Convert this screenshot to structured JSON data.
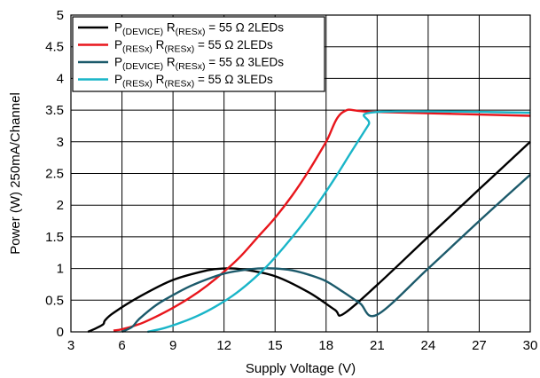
{
  "chart_data": {
    "type": "line",
    "title": "",
    "xlabel": "Supply Voltage (V)",
    "ylabel": "Power (W) 250mA/Channel",
    "xlim": [
      3,
      30
    ],
    "ylim": [
      0,
      5
    ],
    "x_ticks": [
      "3",
      "6",
      "9",
      "12",
      "15",
      "18",
      "21",
      "24",
      "27",
      "30"
    ],
    "y_ticks": [
      "0",
      "0.5",
      "1",
      "1.5",
      "2",
      "2.5",
      "3",
      "3.5",
      "4",
      "4.5",
      "5"
    ],
    "grid": true,
    "legend_position": "top-left",
    "series": [
      {
        "name": "P(DEVICE) R(RESx) = 55 Ω 2LEDs",
        "legend": {
          "main": "P",
          "sub1": "(DEVICE)",
          "mid": " R",
          "sub2": "(RESx)",
          "rest": " = 55 Ω 2LEDs"
        },
        "color": "#000000",
        "points": [
          [
            4,
            0.0
          ],
          [
            4.5,
            0.06
          ],
          [
            4.9,
            0.12
          ],
          [
            5.0,
            0.18
          ],
          [
            5.5,
            0.3
          ],
          [
            7,
            0.55
          ],
          [
            9,
            0.82
          ],
          [
            11,
            0.97
          ],
          [
            12,
            1.0
          ],
          [
            13,
            0.99
          ],
          [
            15,
            0.88
          ],
          [
            17,
            0.62
          ],
          [
            18.5,
            0.35
          ],
          [
            19,
            0.28
          ],
          [
            21,
            0.74
          ],
          [
            24,
            1.5
          ],
          [
            27,
            2.25
          ],
          [
            30,
            3.0
          ]
        ]
      },
      {
        "name": "P(RESx) R(RESx) = 55 Ω 2LEDs",
        "legend": {
          "main": "P",
          "sub1": "(RESx)",
          "mid": " R",
          "sub2": "(RESx)",
          "rest": " = 55 Ω 2LEDs"
        },
        "color": "#e8161c",
        "points": [
          [
            5.5,
            0.02
          ],
          [
            6,
            0.04
          ],
          [
            7,
            0.12
          ],
          [
            8,
            0.24
          ],
          [
            9,
            0.38
          ],
          [
            10,
            0.54
          ],
          [
            11,
            0.73
          ],
          [
            12,
            0.95
          ],
          [
            13,
            1.2
          ],
          [
            14,
            1.5
          ],
          [
            15,
            1.8
          ],
          [
            16,
            2.15
          ],
          [
            17,
            2.55
          ],
          [
            18,
            3.0
          ],
          [
            19,
            3.47
          ],
          [
            21,
            3.47
          ],
          [
            30,
            3.41
          ]
        ]
      },
      {
        "name": "P(DEVICE) R(RESx) = 55 Ω 3LEDs",
        "legend": {
          "main": "P",
          "sub1": "(DEVICE)",
          "mid": " R",
          "sub2": "(RESx)",
          "rest": " = 55 Ω 3LEDs"
        },
        "color": "#1c5a6b",
        "points": [
          [
            6,
            0.0
          ],
          [
            6.6,
            0.08
          ],
          [
            7,
            0.2
          ],
          [
            8,
            0.42
          ],
          [
            9,
            0.58
          ],
          [
            10,
            0.72
          ],
          [
            11,
            0.83
          ],
          [
            12,
            0.92
          ],
          [
            13,
            0.97
          ],
          [
            14,
            1.0
          ],
          [
            15,
            1.0
          ],
          [
            16,
            0.97
          ],
          [
            17,
            0.9
          ],
          [
            18,
            0.8
          ],
          [
            19,
            0.63
          ],
          [
            20,
            0.45
          ],
          [
            21,
            0.27
          ],
          [
            24,
            1.0
          ],
          [
            27,
            1.75
          ],
          [
            30,
            2.48
          ]
        ]
      },
      {
        "name": "P(RESx) R(RESx) = 55 Ω 3LEDs",
        "legend": {
          "main": "P",
          "sub1": "(RESx)",
          "mid": " R",
          "sub2": "(RESx)",
          "rest": " = 55 Ω 3LEDs"
        },
        "color": "#1ab5c8",
        "points": [
          [
            7.5,
            0.0
          ],
          [
            8.5,
            0.06
          ],
          [
            9.5,
            0.15
          ],
          [
            10.5,
            0.26
          ],
          [
            11.5,
            0.4
          ],
          [
            12.5,
            0.57
          ],
          [
            13.5,
            0.78
          ],
          [
            14.5,
            1.03
          ],
          [
            15.5,
            1.33
          ],
          [
            16.5,
            1.66
          ],
          [
            17.5,
            2.02
          ],
          [
            18.5,
            2.42
          ],
          [
            19.5,
            2.85
          ],
          [
            20.5,
            3.27
          ],
          [
            21,
            3.47
          ],
          [
            30,
            3.46
          ]
        ]
      }
    ]
  }
}
